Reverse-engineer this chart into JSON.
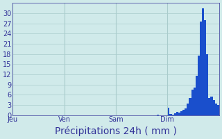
{
  "title": "Précipitations 24h ( mm )",
  "background_color": "#d0eaea",
  "bar_color": "#1a4fcc",
  "grid_color": "#aacccc",
  "axis_color": "#333399",
  "ylim": [
    0,
    33
  ],
  "yticks": [
    0,
    3,
    6,
    9,
    12,
    15,
    18,
    21,
    24,
    27,
    30
  ],
  "day_labels": [
    "Jeu",
    "Ven",
    "Sam",
    "Dim"
  ],
  "n_bars": 96,
  "values": [
    0,
    0,
    0,
    0,
    0,
    0,
    0,
    0,
    0,
    0,
    0,
    0,
    0,
    0,
    0,
    0,
    0,
    0,
    0,
    0,
    0,
    0,
    0,
    0,
    0,
    0,
    0,
    0,
    0,
    0,
    0,
    0,
    0,
    0,
    0,
    0,
    0,
    0,
    0,
    0,
    0,
    0,
    0,
    0,
    0,
    0,
    0,
    0,
    0,
    0,
    0,
    0,
    0,
    0,
    0,
    0,
    0,
    0,
    0,
    0,
    0,
    0,
    0,
    0,
    0,
    0,
    0,
    0.2,
    0,
    0,
    0,
    0,
    2.2,
    0.3,
    0.1,
    0.5,
    1.0,
    0.8,
    1.2,
    1.5,
    2.0,
    3.5,
    5.0,
    7.5,
    8.2,
    11.5,
    17.5,
    27.5,
    31.5,
    28.0,
    18.0,
    5.0,
    5.5,
    4.5,
    3.5,
    3.0
  ],
  "title_fontsize": 10,
  "tick_fontsize": 7
}
